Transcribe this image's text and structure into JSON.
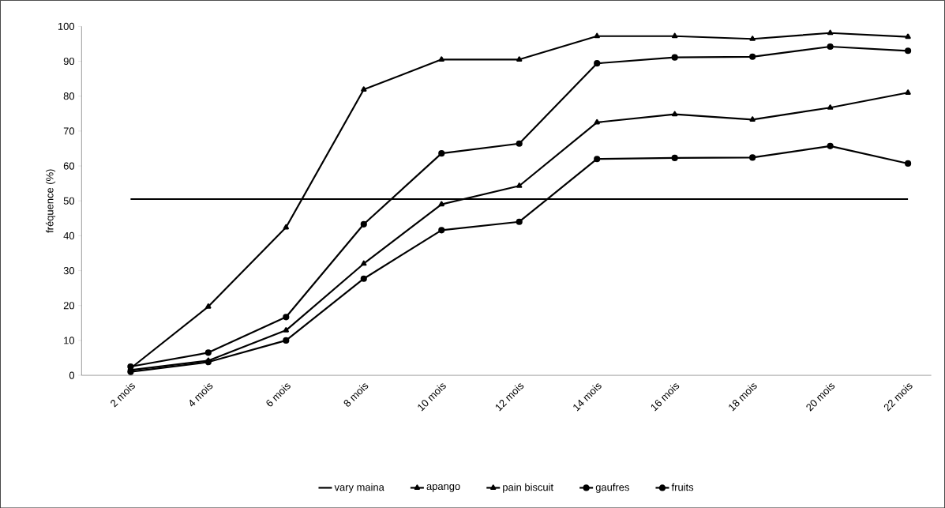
{
  "chart_data": {
    "type": "line",
    "ylabel": "fréquence (%)",
    "categories": [
      "2 mois",
      "4 mois",
      "6 mois",
      "8 mois",
      "10 mois",
      "12 mois",
      "14 mois",
      "16 mois",
      "18 mois",
      "20 mois",
      "22 mois"
    ],
    "series": [
      {
        "name": "vary maina",
        "color": "#000000",
        "marker": "none",
        "values": [
          50.5,
          50.5,
          50.5,
          50.5,
          50.5,
          50.5,
          50.5,
          50.5,
          50.5,
          50.5,
          50.5
        ]
      },
      {
        "name": "apango",
        "color": "#000000",
        "marker": "triangle",
        "values": [
          2,
          19.7,
          42.4,
          81.9,
          90.5,
          90.5,
          97.2,
          97.2,
          96.4,
          98.1,
          97
        ]
      },
      {
        "name": "pain biscuit",
        "color": "#000000",
        "marker": "triangle",
        "values": [
          1.5,
          4.2,
          12.9,
          32,
          49,
          54.3,
          72.5,
          74.8,
          73.3,
          76.7,
          81
        ]
      },
      {
        "name": "gaufres",
        "color": "#000000",
        "marker": "circle",
        "values": [
          1,
          3.8,
          10,
          27.7,
          41.6,
          44,
          62,
          62.3,
          62.4,
          65.7,
          60.7
        ]
      },
      {
        "name": "fruits",
        "color": "#000000",
        "marker": "circle",
        "values": [
          2.5,
          6.5,
          16.7,
          43.3,
          63.6,
          66.4,
          89.4,
          91.1,
          91.3,
          94.2,
          93
        ]
      }
    ],
    "ylim": [
      0,
      100
    ],
    "yticks": [
      0,
      10,
      20,
      30,
      40,
      50,
      60,
      70,
      80,
      90,
      100
    ],
    "grid": false,
    "legend": "bottom"
  }
}
